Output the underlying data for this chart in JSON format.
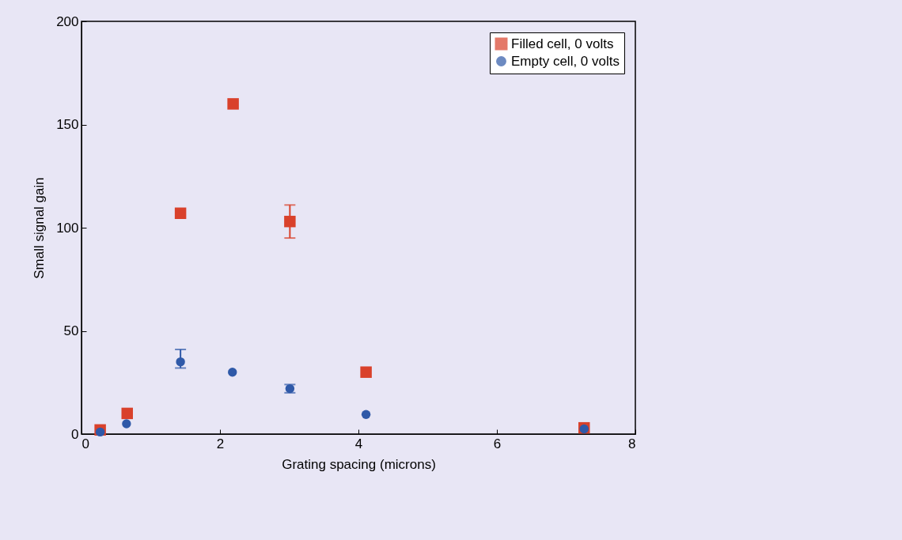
{
  "chart_data": {
    "type": "scatter",
    "xlabel": "Grating spacing (microns)",
    "ylabel": "Small signal gain",
    "xlim": [
      0,
      8
    ],
    "xticks": [
      0,
      2,
      4,
      6,
      8
    ],
    "ylim": [
      0,
      200
    ],
    "yticks": [
      0,
      50,
      100,
      150,
      200
    ],
    "grid": false,
    "legend": "top right",
    "series": [
      {
        "name": "Filled cell, 0 volts",
        "color": "#d9412b",
        "marker": "square",
        "x": [
          0.27,
          0.66,
          1.43,
          2.19,
          3.01,
          4.11,
          7.26
        ],
        "values": [
          2,
          10,
          107,
          160,
          103,
          30,
          3
        ],
        "errors": [
          null,
          null,
          null,
          null,
          [
            95,
            111
          ],
          null,
          null
        ]
      },
      {
        "name": "Empty cell, 0 volts",
        "color": "#2f59a8",
        "marker": "circle",
        "x": [
          0.27,
          0.65,
          1.43,
          2.18,
          3.01,
          4.11,
          7.26
        ],
        "values": [
          1,
          5,
          35,
          30,
          22,
          9.5,
          2.5
        ],
        "errors": [
          null,
          null,
          [
            32,
            41
          ],
          null,
          [
            20,
            24
          ],
          null,
          null
        ]
      }
    ]
  }
}
